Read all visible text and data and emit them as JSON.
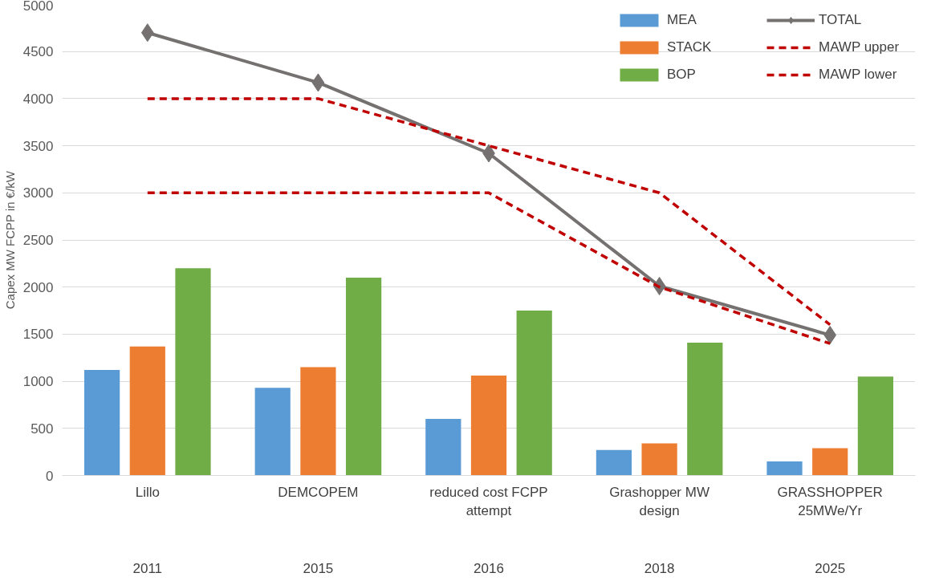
{
  "chart_data": {
    "type": "bar",
    "ylabel": "Capex MW FCPP in €/kW",
    "categories": [
      "Lillo",
      "DEMCOPEM",
      "reduced cost FCPP attempt",
      "Grashopper MW design",
      "GRASSHOPPER 25MWe/Yr"
    ],
    "series": [
      {
        "name": "MEA",
        "color": "#5b9bd5",
        "values": [
          1120,
          930,
          600,
          270,
          150
        ]
      },
      {
        "name": "STACK",
        "color": "#ed7d31",
        "values": [
          1370,
          1150,
          1060,
          340,
          290
        ]
      },
      {
        "name": "BOP",
        "color": "#70ad47",
        "values": [
          2200,
          2100,
          1750,
          1410,
          1050
        ]
      },
      {
        "name": "TOTAL",
        "type": "line",
        "color": "#767171",
        "marker": "diamond",
        "line_style": "solid",
        "values": [
          4700,
          4170,
          3420,
          2010,
          1490
        ]
      },
      {
        "name": "MAWP upper",
        "type": "line",
        "color": "#c00000",
        "marker": "none",
        "line_style": "dashed",
        "values": [
          4000,
          4000,
          3500,
          3000,
          1600
        ]
      },
      {
        "name": "MAWP lower",
        "type": "line",
        "color": "#c00000",
        "marker": "none",
        "line_style": "dashed",
        "values": [
          3000,
          3000,
          3000,
          2000,
          1400
        ]
      }
    ],
    "annotations": [
      "2011",
      "2015",
      "2016",
      "2018",
      "2025"
    ],
    "ylim": [
      0,
      5000
    ],
    "yticks": [
      0,
      500,
      1000,
      1500,
      2000,
      2500,
      3000,
      3500,
      4000,
      4500,
      5000
    ],
    "grid": "y",
    "legend": "top right"
  }
}
